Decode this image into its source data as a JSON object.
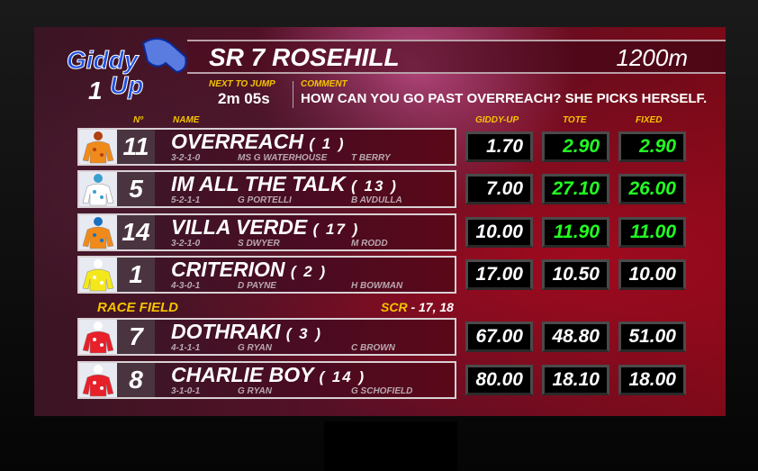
{
  "logo": {
    "text": "Giddy Up",
    "number": "1"
  },
  "race": {
    "title": "SR 7 ROSEHILL",
    "distance": "1200m"
  },
  "next_to_jump": {
    "label": "NEXT TO JUMP",
    "value": "2m 05s"
  },
  "comment": {
    "label": "COMMENT",
    "value": "HOW CAN YOU GO PAST OVERREACH? SHE PICKS HERSELF."
  },
  "headers": {
    "number": "Nº",
    "name": "NAME",
    "giddyup": "GIDDY-UP",
    "tote": "TOTE",
    "fixed": "FIXED"
  },
  "race_field": {
    "label": "RACE FIELD",
    "scr_label": "SCR",
    "scr_value": "- 17, 18"
  },
  "colors": {
    "odds_highlight": "#22ff22",
    "label": "#f5c400"
  },
  "runners": [
    {
      "number": "11",
      "name": "OVERREACH",
      "barrier": "( 1 )",
      "form": "3-2-1-0",
      "trainer": "MS G WATERHOUSE",
      "jockey": "T BERRY",
      "giddyup": "1.70",
      "tote": "2.90",
      "fixed": "2.90",
      "highlight": true,
      "silk": "orange-spots"
    },
    {
      "number": "5",
      "name": "IM ALL THE TALK",
      "barrier": "( 13 )",
      "form": "5-2-1-1",
      "trainer": "G PORTELLI",
      "jockey": "B AVDULLA",
      "giddyup": "7.00",
      "tote": "27.10",
      "fixed": "26.00",
      "highlight": true,
      "silk": "white-elite"
    },
    {
      "number": "14",
      "name": "VILLA VERDE",
      "barrier": "( 17 )",
      "form": "3-2-1-0",
      "trainer": "S DWYER",
      "jockey": "M RODD",
      "giddyup": "10.00",
      "tote": "11.90",
      "fixed": "11.00",
      "highlight": true,
      "silk": "orange-blue-sash"
    },
    {
      "number": "1",
      "name": "CRITERION",
      "barrier": "( 2 )",
      "form": "4-3-0-1",
      "trainer": "D PAYNE",
      "jockey": "H BOWMAN",
      "giddyup": "17.00",
      "tote": "10.50",
      "fixed": "10.00",
      "highlight": false,
      "silk": "yellow"
    },
    {
      "number": "7",
      "name": "DOTHRAKI",
      "barrier": "( 3 )",
      "form": "4-1-1-1",
      "trainer": "G RYAN",
      "jockey": "C BROWN",
      "giddyup": "67.00",
      "tote": "48.80",
      "fixed": "51.00",
      "highlight": false,
      "silk": "red-triple-crown"
    },
    {
      "number": "8",
      "name": "CHARLIE BOY",
      "barrier": "( 14 )",
      "form": "3-1-0-1",
      "trainer": "G RYAN",
      "jockey": "G SCHOFIELD",
      "giddyup": "80.00",
      "tote": "18.10",
      "fixed": "18.00",
      "highlight": false,
      "silk": "red-triple-crown"
    }
  ]
}
